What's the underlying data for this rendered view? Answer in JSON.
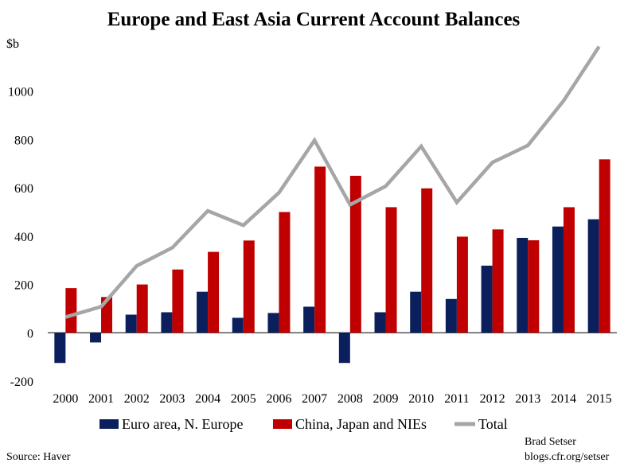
{
  "chart_data": {
    "type": "bar",
    "title": "Europe and East Asia Current Account Balances",
    "ylabel": "$b",
    "ylim": [
      -200,
      1200
    ],
    "yticks": [
      -200,
      0,
      200,
      400,
      600,
      800,
      1000
    ],
    "categories": [
      "2000",
      "2001",
      "2002",
      "2003",
      "2004",
      "2005",
      "2006",
      "2007",
      "2008",
      "2009",
      "2010",
      "2011",
      "2012",
      "2013",
      "2014",
      "2015"
    ],
    "series": [
      {
        "name": "Euro area, N. Europe",
        "type": "bar",
        "color": "#0b1f5c",
        "values": [
          -125,
          -40,
          75,
          85,
          170,
          62,
          82,
          108,
          -125,
          85,
          170,
          140,
          278,
          393,
          440,
          470
        ]
      },
      {
        "name": "China, Japan and NIEs",
        "type": "bar",
        "color": "#c00000",
        "values": [
          185,
          148,
          200,
          262,
          335,
          382,
          500,
          688,
          650,
          520,
          598,
          398,
          428,
          383,
          520,
          718
        ]
      },
      {
        "name": "Total",
        "type": "line",
        "color": "#a6a6a6",
        "values": [
          65,
          108,
          277,
          352,
          505,
          445,
          580,
          797,
          530,
          607,
          772,
          540,
          705,
          776,
          960,
          1185
        ]
      }
    ],
    "grid": false,
    "legend_position": "bottom"
  },
  "footer": {
    "source": "Source:  Haver",
    "author": "Brad Setser",
    "site": "blogs.cfr.org/setser"
  }
}
